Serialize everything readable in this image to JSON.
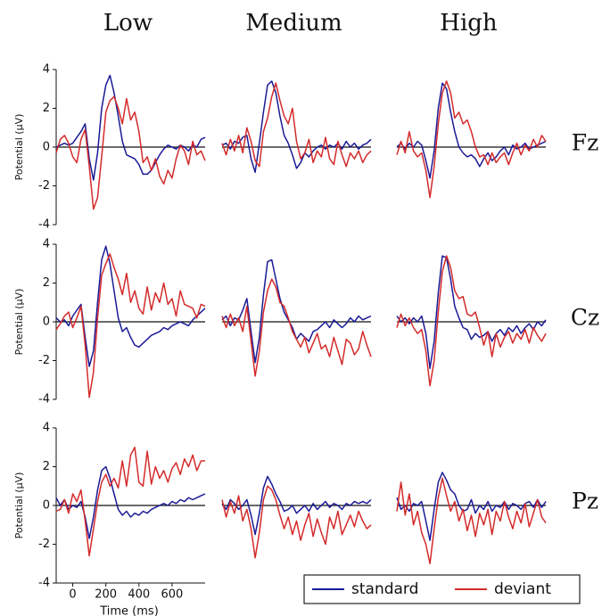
{
  "chart_data": {
    "type": "line",
    "column_titles": [
      "Low",
      "Medium",
      "High"
    ],
    "row_labels": [
      "Fz",
      "Cz",
      "Pz"
    ],
    "xlabel": "Time (ms)",
    "ylabel": "Potential (μV)",
    "x": [
      -100,
      -75,
      -50,
      -25,
      0,
      25,
      50,
      75,
      100,
      125,
      150,
      175,
      200,
      225,
      250,
      275,
      300,
      325,
      350,
      375,
      400,
      425,
      450,
      475,
      500,
      525,
      550,
      575,
      600,
      625,
      650,
      675,
      700,
      725,
      750,
      775,
      800
    ],
    "xlim": [
      -100,
      800
    ],
    "xticks": [
      0,
      200,
      400,
      600
    ],
    "ylim": [
      -4,
      4
    ],
    "yticks": [
      -4,
      -2,
      0,
      2,
      4
    ],
    "series": [
      {
        "name": "standard",
        "color": "#1a1a96"
      },
      {
        "name": "deviant",
        "color": "#d42a2a"
      }
    ],
    "panels": [
      {
        "values": [
          [
            0,
            0.1,
            0.2,
            0.1,
            0.2,
            0.5,
            0.8,
            1.2,
            -0.6,
            -1.7,
            -0.3,
            2.0,
            3.2,
            3.7,
            2.8,
            1.6,
            0.3,
            -0.4,
            -0.5,
            -0.6,
            -0.9,
            -1.4,
            -1.4,
            -1.2,
            -0.8,
            -0.4,
            -0.1,
            0.1,
            0,
            -0.1,
            0.1,
            0,
            -0.2,
            0.1,
            0,
            0.4,
            0.5
          ],
          [
            -0.3,
            0.4,
            0.6,
            0.2,
            -0.5,
            -0.8,
            0.4,
            0.9,
            -1.0,
            -3.2,
            -2.6,
            -0.5,
            1.8,
            2.4,
            2.6,
            2.0,
            1.2,
            2.5,
            1.4,
            1.8,
            0.8,
            -0.8,
            -0.5,
            -1.2,
            -0.6,
            -1.5,
            -1.9,
            -1.2,
            -1.6,
            -0.6,
            0.1,
            -0.2,
            -0.9,
            0.3,
            -0.4,
            -0.2,
            -0.7
          ]
        ]
      },
      {
        "values": [
          [
            0.1,
            0.2,
            -0.1,
            0.3,
            0.2,
            0.5,
            0.6,
            -0.6,
            -1.3,
            0.2,
            1.8,
            3.2,
            3.4,
            2.8,
            1.6,
            0.6,
            0.2,
            -0.4,
            -1.1,
            -0.8,
            -0.3,
            -0.5,
            -0.2,
            0,
            0.1,
            -0.1,
            0.1,
            0,
            0.2,
            -0.1,
            0.3,
            0,
            0.2,
            -0.1,
            0.1,
            0.2,
            0.4
          ],
          [
            0.2,
            -0.4,
            0.4,
            -0.2,
            0.6,
            -0.3,
            1.0,
            0.3,
            -0.7,
            -1.0,
            0.8,
            1.5,
            2.6,
            3.3,
            2.4,
            1.6,
            1.2,
            2.0,
            0.3,
            -0.6,
            -0.3,
            0.4,
            -0.8,
            -0.2,
            -0.5,
            0.5,
            -0.6,
            -0.9,
            0.3,
            -0.4,
            -1.0,
            -0.3,
            -0.6,
            -0.2,
            -0.8,
            -0.4,
            -0.2
          ]
        ]
      },
      {
        "values": [
          [
            0,
            0.2,
            -0.1,
            0.2,
            0,
            0.3,
            0.1,
            -0.7,
            -1.6,
            -0.2,
            2.0,
            3.3,
            3.0,
            1.8,
            0.8,
            0,
            -0.3,
            -0.5,
            -0.4,
            -0.6,
            -1.0,
            -0.6,
            -0.3,
            -0.7,
            -0.5,
            -0.2,
            0,
            -0.4,
            0.1,
            -0.1,
            0,
            0.2,
            -0.1,
            0,
            0.1,
            0.2,
            0.3
          ],
          [
            -0.4,
            0.3,
            -0.3,
            0.8,
            -0.2,
            -0.5,
            -0.3,
            -1.2,
            -2.6,
            -1.0,
            1.2,
            2.8,
            3.4,
            2.8,
            1.5,
            1.8,
            1.2,
            1.4,
            0.8,
            0,
            -0.5,
            -0.4,
            -0.9,
            -0.3,
            -0.8,
            -0.5,
            -0.3,
            -0.9,
            -0.3,
            0.2,
            -0.4,
            0.1,
            -0.2,
            0.4,
            0,
            0.6,
            0.3
          ]
        ]
      },
      {
        "values": [
          [
            0.2,
            0,
            0.1,
            -0.2,
            0.3,
            0.6,
            0.9,
            -0.8,
            -2.3,
            -1.5,
            1.0,
            3.2,
            3.9,
            3.0,
            1.6,
            0.2,
            -0.5,
            -0.3,
            -0.8,
            -1.2,
            -1.3,
            -1.1,
            -0.9,
            -0.7,
            -0.6,
            -0.5,
            -0.3,
            -0.4,
            -0.2,
            -0.1,
            0,
            -0.1,
            -0.2,
            0.1,
            0.3,
            0.5,
            0.7
          ],
          [
            -0.4,
            -0.1,
            0.3,
            0.5,
            -0.3,
            0.2,
            0.8,
            -1.2,
            -3.9,
            -2.6,
            0.2,
            2.4,
            3.0,
            3.5,
            2.8,
            2.2,
            1.4,
            2.5,
            1.0,
            1.6,
            0.7,
            0.4,
            1.8,
            0.6,
            1.5,
            1.0,
            2.0,
            0.9,
            1.2,
            0.3,
            1.6,
            0.9,
            0.8,
            0.7,
            0.2,
            0.9,
            0.8
          ]
        ]
      },
      {
        "values": [
          [
            0.1,
            0.3,
            -0.2,
            0.2,
            0.1,
            0.6,
            1.2,
            -0.5,
            -2.1,
            -0.8,
            1.4,
            3.1,
            3.2,
            2.2,
            1.2,
            0.5,
            0.1,
            -0.3,
            -0.9,
            -0.6,
            -0.8,
            -1.0,
            -0.5,
            -0.4,
            -0.2,
            0,
            -0.3,
            0.1,
            -0.1,
            -0.3,
            -0.1,
            0.2,
            0,
            0.3,
            0.1,
            0.2,
            0.3
          ],
          [
            0.3,
            -0.3,
            0.4,
            -0.2,
            0.2,
            -0.5,
            0.8,
            -1.0,
            -2.8,
            -1.5,
            0.5,
            1.6,
            2.2,
            1.8,
            1.0,
            0.8,
            0.2,
            -0.5,
            -0.9,
            -1.3,
            -0.8,
            -1.6,
            -1.1,
            -0.6,
            -1.4,
            -1.2,
            -1.8,
            -0.8,
            -1.5,
            -2.2,
            -0.9,
            -1.1,
            -1.7,
            -1.4,
            -0.5,
            -1.2,
            -1.8
          ]
        ]
      },
      {
        "values": [
          [
            0.3,
            0,
            0.2,
            -0.1,
            0.2,
            0,
            0.3,
            -0.6,
            -2.4,
            -1.0,
            1.5,
            3.4,
            3.3,
            2.2,
            0.8,
            0.2,
            -0.3,
            -0.4,
            -0.9,
            -0.6,
            -0.8,
            -0.7,
            -0.5,
            -1.0,
            -0.6,
            -0.4,
            -0.7,
            -0.3,
            -0.5,
            -0.2,
            -0.6,
            -0.3,
            -0.1,
            -0.4,
            0,
            -0.2,
            0.1
          ],
          [
            -0.3,
            0.4,
            -0.2,
            0.2,
            -0.3,
            -0.6,
            -0.4,
            -1.5,
            -3.3,
            -2.0,
            0.5,
            2.6,
            3.4,
            2.8,
            1.6,
            1.2,
            1.3,
            0.4,
            0.3,
            0.5,
            -0.3,
            -1.2,
            -0.5,
            -1.8,
            -0.6,
            -1.3,
            -0.8,
            -0.5,
            -1.1,
            -0.6,
            -0.9,
            -0.4,
            -1.1,
            -0.3,
            -0.7,
            -1.0,
            -0.6
          ]
        ]
      },
      {
        "values": [
          [
            0.4,
            0,
            0.3,
            -0.2,
            0,
            -0.1,
            0.2,
            -0.6,
            -1.7,
            -0.6,
            0.8,
            1.8,
            2.0,
            1.4,
            0.6,
            -0.2,
            -0.5,
            -0.3,
            -0.6,
            -0.4,
            -0.5,
            -0.3,
            -0.4,
            -0.2,
            -0.1,
            0,
            0.1,
            0,
            0.2,
            0.1,
            0.3,
            0.2,
            0.4,
            0.3,
            0.4,
            0.5,
            0.6
          ],
          [
            -0.3,
            -0.2,
            0.3,
            -0.4,
            0.6,
            0.2,
            0.8,
            -0.8,
            -2.6,
            -1.2,
            0.2,
            1.2,
            1.6,
            1.0,
            1.4,
            0.9,
            2.3,
            1.0,
            2.6,
            3.0,
            1.2,
            1.0,
            2.8,
            1.1,
            2.0,
            1.4,
            1.8,
            1.2,
            1.9,
            2.2,
            1.6,
            2.4,
            2.0,
            2.6,
            1.8,
            2.3,
            2.3
          ]
        ]
      },
      {
        "values": [
          [
            0.1,
            -0.2,
            0.3,
            0.1,
            -0.2,
            0,
            0.3,
            -0.5,
            -1.5,
            -0.4,
            0.9,
            1.5,
            1.1,
            0.6,
            0.2,
            -0.3,
            -0.2,
            0,
            -0.4,
            -0.2,
            0,
            -0.3,
            0.1,
            -0.2,
            0,
            0.2,
            -0.1,
            0.1,
            0,
            -0.2,
            0.1,
            0,
            0.2,
            0.1,
            0.2,
            0.1,
            0.3
          ],
          [
            0.3,
            -0.6,
            0.2,
            -0.4,
            0.5,
            -0.8,
            -0.2,
            -1.2,
            -2.7,
            -1.4,
            0.3,
            1.0,
            0.8,
            0.3,
            -0.5,
            -1.2,
            -0.6,
            -1.5,
            -0.8,
            -1.8,
            -1.0,
            -0.4,
            -1.6,
            -0.7,
            -1.4,
            -2.0,
            -0.6,
            -1.2,
            -0.3,
            -1.5,
            -1.0,
            -0.5,
            -1.1,
            -0.3,
            -0.8,
            -1.2,
            -1.0
          ]
        ]
      },
      {
        "values": [
          [
            0.4,
            -0.2,
            0,
            -0.3,
            0.1,
            0,
            0.2,
            -0.8,
            -1.8,
            -0.2,
            1.2,
            1.7,
            1.3,
            0.8,
            0.6,
            0,
            -0.3,
            -0.2,
            0.3,
            -0.4,
            0,
            -0.2,
            0.2,
            -0.3,
            0,
            -0.1,
            0.2,
            -0.2,
            0.1,
            0,
            -0.2,
            0.1,
            0.2,
            -0.1,
            0.3,
            -0.1,
            0.2
          ],
          [
            -0.3,
            1.2,
            -0.5,
            0.6,
            -1.0,
            -0.3,
            -1.4,
            -2.0,
            -3.0,
            -1.2,
            0.4,
            1.4,
            0.5,
            -0.3,
            0.2,
            -0.8,
            -0.2,
            -1.3,
            -0.5,
            -1.6,
            -0.4,
            -1.0,
            -0.2,
            -1.5,
            -0.3,
            -0.8,
            0.2,
            -0.6,
            -1.2,
            -0.3,
            -0.9,
            0.1,
            -1.1,
            -0.4,
            0.3,
            -0.6,
            -0.9
          ]
        ]
      }
    ]
  }
}
